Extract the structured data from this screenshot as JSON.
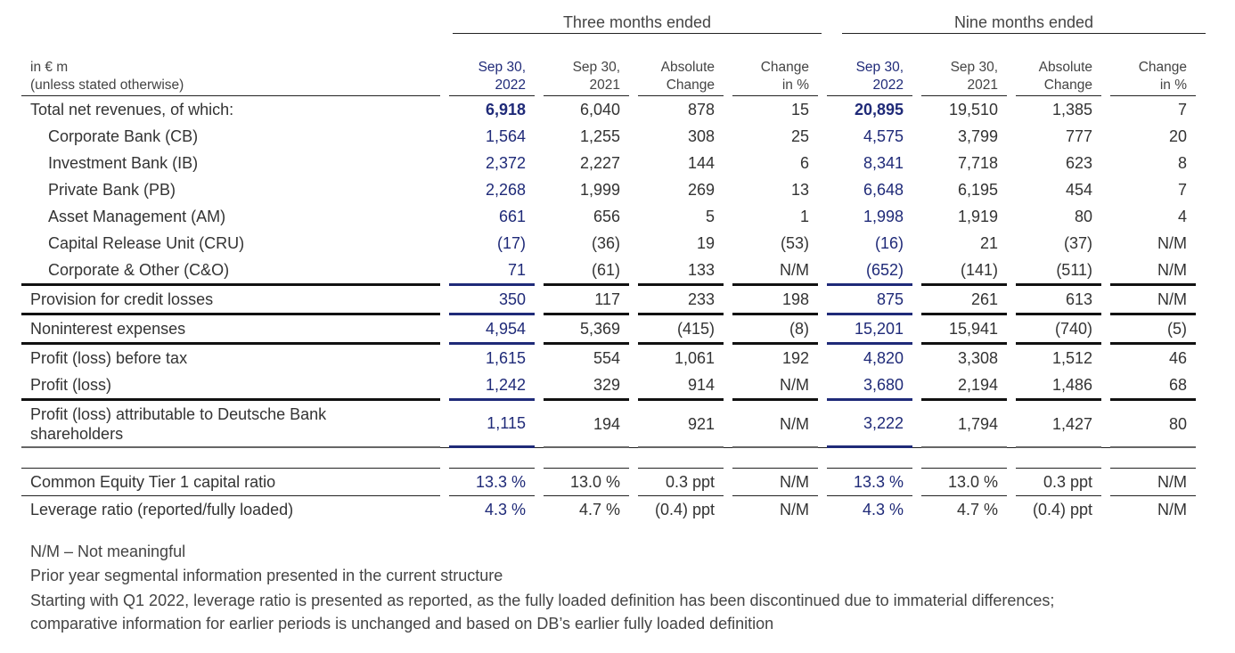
{
  "groups": {
    "three_months": "Three months ended",
    "nine_months": "Nine months ended"
  },
  "header": {
    "label_line1": "in € m",
    "label_line2": "(unless stated otherwise)",
    "cols": [
      {
        "l1": "Sep 30,",
        "l2": "2022"
      },
      {
        "l1": "Sep 30,",
        "l2": "2021"
      },
      {
        "l1": "Absolute",
        "l2": "Change"
      },
      {
        "l1": "Change",
        "l2": "in %"
      },
      {
        "l1": "Sep 30,",
        "l2": "2022"
      },
      {
        "l1": "Sep 30,",
        "l2": "2021"
      },
      {
        "l1": "Absolute",
        "l2": "Change"
      },
      {
        "l1": "Change",
        "l2": "in %"
      }
    ]
  },
  "rows": [
    {
      "label": "Total net revenues, of which:",
      "v": [
        "6,918",
        "6,040",
        "878",
        "15",
        "20,895",
        "19,510",
        "1,385",
        "7"
      ]
    },
    {
      "label": "Corporate Bank (CB)",
      "v": [
        "1,564",
        "1,255",
        "308",
        "25",
        "4,575",
        "3,799",
        "777",
        "20"
      ]
    },
    {
      "label": "Investment Bank (IB)",
      "v": [
        "2,372",
        "2,227",
        "144",
        "6",
        "8,341",
        "7,718",
        "623",
        "8"
      ]
    },
    {
      "label": "Private Bank (PB)",
      "v": [
        "2,268",
        "1,999",
        "269",
        "13",
        "6,648",
        "6,195",
        "454",
        "7"
      ]
    },
    {
      "label": "Asset Management (AM)",
      "v": [
        "661",
        "656",
        "5",
        "1",
        "1,998",
        "1,919",
        "80",
        "4"
      ]
    },
    {
      "label": "Capital Release Unit (CRU)",
      "v": [
        "(17)",
        "(36)",
        "19",
        "(53)",
        "(16)",
        "21",
        "(37)",
        "N/M"
      ]
    },
    {
      "label": "Corporate & Other (C&O)",
      "v": [
        "71",
        "(61)",
        "133",
        "N/M",
        "(652)",
        "(141)",
        "(511)",
        "N/M"
      ]
    },
    {
      "label": "Provision for credit losses",
      "v": [
        "350",
        "117",
        "233",
        "198",
        "875",
        "261",
        "613",
        "N/M"
      ]
    },
    {
      "label": "Noninterest expenses",
      "v": [
        "4,954",
        "5,369",
        "(415)",
        "(8)",
        "15,201",
        "15,941",
        "(740)",
        "(5)"
      ]
    },
    {
      "label": "Profit (loss) before tax",
      "v": [
        "1,615",
        "554",
        "1,061",
        "192",
        "4,820",
        "3,308",
        "1,512",
        "46"
      ]
    },
    {
      "label": "Profit (loss)",
      "v": [
        "1,242",
        "329",
        "914",
        "N/M",
        "3,680",
        "2,194",
        "1,486",
        "68"
      ]
    },
    {
      "label_l1": "Profit (loss) attributable to Deutsche Bank",
      "label_l2": "shareholders",
      "v": [
        "1,115",
        "194",
        "921",
        "N/M",
        "3,222",
        "1,794",
        "1,427",
        "80"
      ]
    },
    {
      "label": "Common Equity Tier 1 capital ratio",
      "v": [
        "13.3 %",
        "13.0 %",
        "0.3  ppt",
        "N/M",
        "13.3 %",
        "13.0 %",
        "0.3  ppt",
        "N/M"
      ]
    },
    {
      "label": "Leverage ratio (reported/fully loaded)",
      "v": [
        "4.3 %",
        "4.7 %",
        "(0.4) ppt",
        "N/M",
        "4.3 %",
        "4.7 %",
        "(0.4) ppt",
        "N/M"
      ]
    }
  ],
  "notes": {
    "n1": "N/M – Not meaningful",
    "n2": "Prior year segmental information presented in the current structure",
    "n3a": "Starting with Q1 2022, leverage ratio is presented as reported, as the fully loaded definition has been discontinued due to immaterial differences;",
    "n3b": "comparative information for earlier periods is unchanged and based on DB’s earlier fully loaded definition"
  }
}
